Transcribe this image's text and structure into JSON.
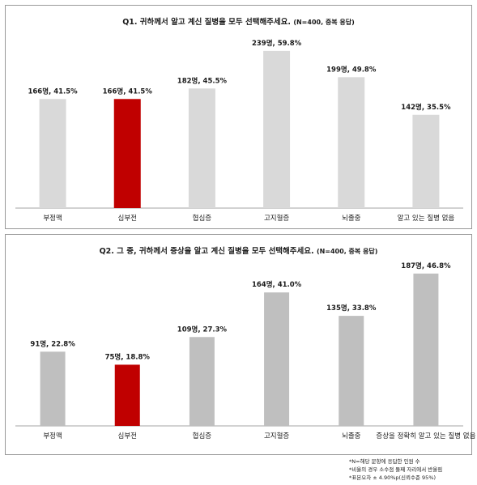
{
  "chart_data": [
    {
      "type": "bar",
      "title": "Q1. 귀하께서 알고 계신 질병을 모두 선택해주세요.",
      "title_note": "(N=400, 중복 응답)",
      "categories": [
        "부정맥",
        "심부전",
        "협심증",
        "고지혈증",
        "뇌졸중",
        "알고 있는 질병 없음"
      ],
      "values": [
        41.5,
        41.5,
        45.5,
        59.8,
        49.8,
        35.5
      ],
      "counts": [
        166,
        166,
        182,
        239,
        199,
        142
      ],
      "data_labels": [
        "166명, 41.5%",
        "166명, 41.5%",
        "182명, 45.5%",
        "239명, 59.8%",
        "199명, 49.8%",
        "142명, 35.5%"
      ],
      "highlight_index": 1,
      "ylim": [
        0,
        65
      ],
      "colors": {
        "bar": "#d9d9d9",
        "highlight": "#c00000"
      }
    },
    {
      "type": "bar",
      "title": "Q2. 그 중, 귀하께서 증상을 알고 계신 질병을 모두 선택해주세요.",
      "title_note": "(N=400, 중복 응답)",
      "categories": [
        "부정맥",
        "심부전",
        "협심증",
        "고지혈증",
        "뇌졸중",
        "증상을 정확히 알고 있는 질병 없음"
      ],
      "values": [
        22.8,
        18.8,
        27.3,
        41.0,
        33.8,
        46.8
      ],
      "counts": [
        91,
        75,
        109,
        164,
        135,
        187
      ],
      "data_labels": [
        "91명, 22.8%",
        "75명, 18.8%",
        "109명, 27.3%",
        "164명, 41.0%",
        "135명, 33.8%",
        "187명, 46.8%"
      ],
      "highlight_index": 1,
      "ylim": [
        0,
        50
      ],
      "colors": {
        "bar": "#bfbfbf",
        "highlight": "#c00000"
      }
    }
  ],
  "footnotes": [
    "*N=해당 문항에 응답한 인원 수",
    "*비율의 경우 소수점 둘째 자리에서 반올림",
    "*표본오차 ± 4.90%p(신뢰수준 95%)"
  ]
}
